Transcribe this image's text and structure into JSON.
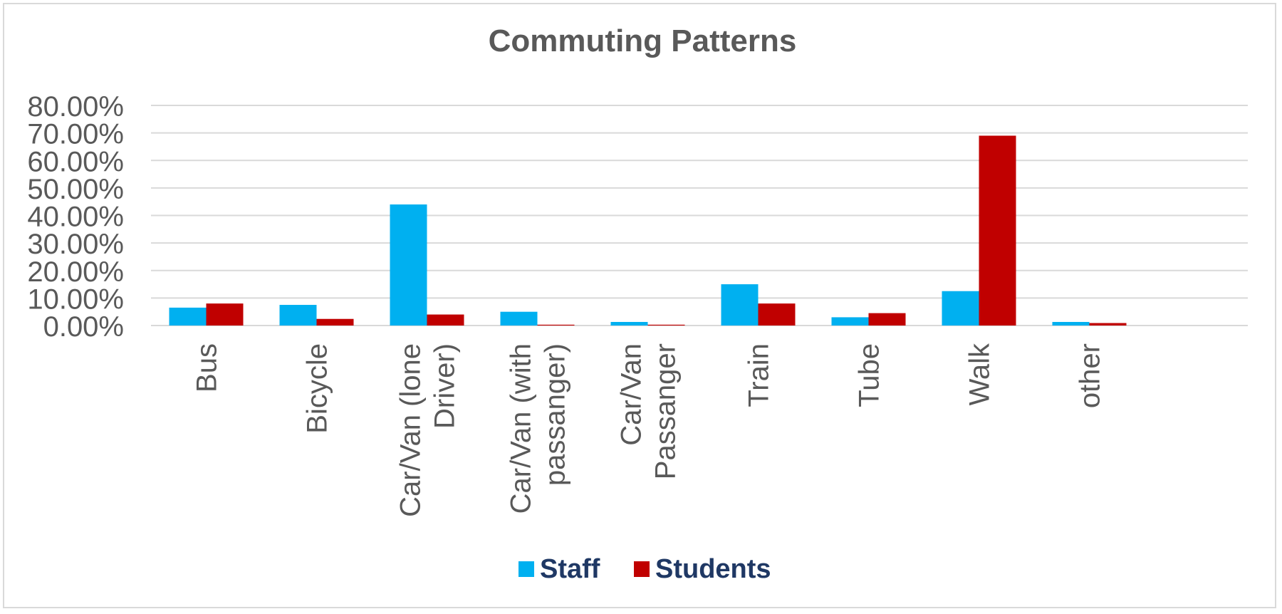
{
  "chart_data": {
    "type": "bar",
    "title": "Commuting Patterns",
    "categories": [
      [
        "Bus"
      ],
      [
        "Bicycle"
      ],
      [
        "Car/Van (lone",
        "Driver)"
      ],
      [
        "Car/Van (with",
        "passanger)"
      ],
      [
        "Car/Van",
        "Passanger"
      ],
      [
        "Train"
      ],
      [
        "Tube"
      ],
      [
        "Walk"
      ],
      [
        "other"
      ]
    ],
    "series": [
      {
        "name": "Staff",
        "color": "#00b0f0",
        "values": [
          6.5,
          7.5,
          44.0,
          5.0,
          1.3,
          15.0,
          3.0,
          12.5,
          1.3
        ]
      },
      {
        "name": "Students",
        "color": "#c00000",
        "values": [
          8.0,
          2.4,
          4.0,
          0.3,
          0.3,
          8.0,
          4.5,
          69.0,
          0.9
        ]
      }
    ],
    "ylim": [
      0,
      80
    ],
    "yticks": [
      "0.00%",
      "10.00%",
      "20.00%",
      "30.00%",
      "40.00%",
      "50.00%",
      "60.00%",
      "70.00%",
      "80.00%"
    ],
    "grid": true,
    "legend_position": "bottom",
    "colors": {
      "title": "#595959",
      "axis_text": "#595959",
      "grid": "#d9d9d9",
      "legend_text": "#1f3864"
    }
  }
}
